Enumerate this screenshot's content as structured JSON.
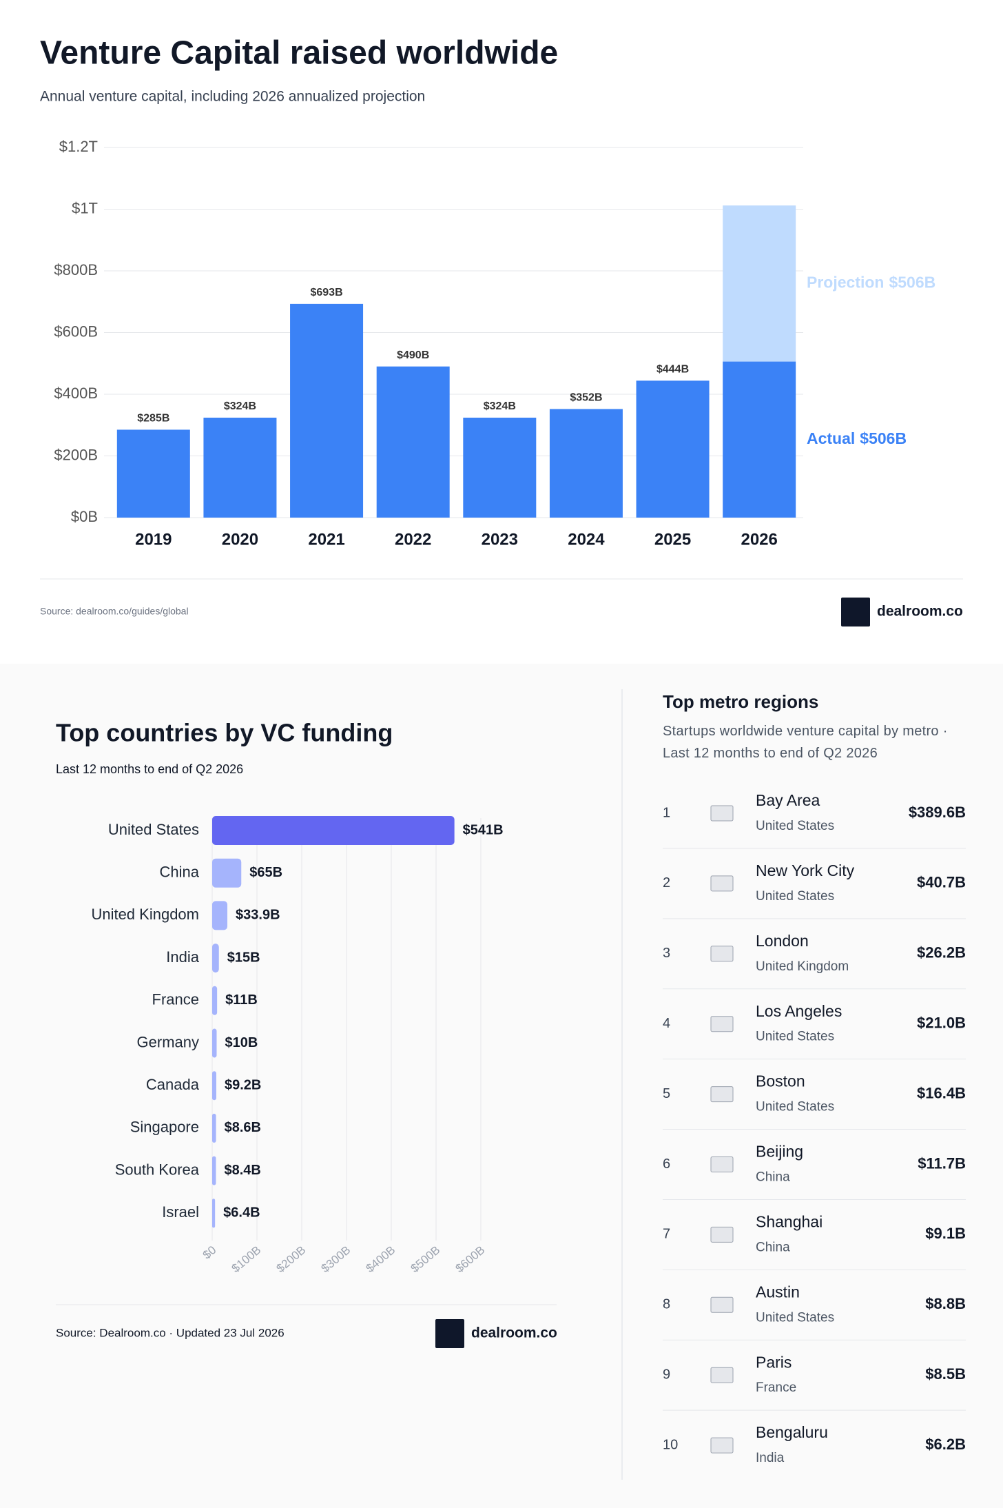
{
  "chart_data": [
    {
      "type": "stacked-bar",
      "title": "Venture Capital raised worldwide",
      "subtitle": "Annual venture capital, including 2026 annualized projection",
      "categories": [
        "2019",
        "2020",
        "2021",
        "2022",
        "2023",
        "2024",
        "2025",
        "2026"
      ],
      "series": [
        {
          "name": "Actual",
          "color": "#3b82f6",
          "values": [
            285,
            324,
            693,
            490,
            324,
            352,
            444,
            506
          ],
          "value_labels": [
            "$285B",
            "$324B",
            "$693B",
            "$490B",
            "$324B",
            "$352B",
            "$444B",
            "$506B"
          ]
        },
        {
          "name": "Projection",
          "color": "#bfdbfe",
          "values": [
            null,
            null,
            null,
            null,
            null,
            null,
            null,
            506
          ],
          "value_labels": [
            null,
            null,
            null,
            null,
            null,
            null,
            null,
            "$506B"
          ]
        }
      ],
      "ylim": [
        0,
        1200
      ],
      "yticks": [
        {
          "value": 0,
          "label": "$0B"
        },
        {
          "value": 200,
          "label": "$200B"
        },
        {
          "value": 400,
          "label": "$400B"
        },
        {
          "value": 600,
          "label": "$600B"
        },
        {
          "value": 800,
          "label": "$800B"
        },
        {
          "value": 1000,
          "label": "$1T"
        },
        {
          "value": 1200,
          "label": "$1.2T"
        }
      ],
      "grid": true,
      "source": "Source: dealroom.co/guides/global",
      "brand": "dealroom.co"
    },
    {
      "type": "barh",
      "title": "Top countries by VC funding",
      "subtitle": "Last 12 months to end of Q2 2026",
      "categories": [
        "United States",
        "China",
        "United Kingdom",
        "India",
        "France",
        "Germany",
        "Canada",
        "Singapore",
        "South Korea",
        "Israel"
      ],
      "values": [
        541,
        65,
        33.9,
        15,
        11,
        10,
        9.2,
        8.6,
        8.4,
        6.4
      ],
      "value_labels": [
        "$541B",
        "$65B",
        "$33.9B",
        "$15B",
        "$11B",
        "$10B",
        "$9.2B",
        "$8.6B",
        "$8.4B",
        "$6.4B"
      ],
      "colors": [
        "#6366f1",
        "#a5b4fc",
        "#a5b4fc",
        "#a5b4fc",
        "#a5b4fc",
        "#a5b4fc",
        "#a5b4fc",
        "#a5b4fc",
        "#a5b4fc",
        "#a5b4fc"
      ],
      "xlim": [
        0,
        600
      ],
      "xticks": [
        {
          "value": 0,
          "label": "$0"
        },
        {
          "value": 100,
          "label": "$100B"
        },
        {
          "value": 200,
          "label": "$200B"
        },
        {
          "value": 300,
          "label": "$300B"
        },
        {
          "value": 400,
          "label": "$400B"
        },
        {
          "value": 500,
          "label": "$500B"
        },
        {
          "value": 600,
          "label": "$600B"
        }
      ],
      "grid": true,
      "source": "Source: Dealroom.co · Updated 23 Jul 2026",
      "brand": "dealroom.co"
    }
  ],
  "metro_table": {
    "title": "Top metro regions",
    "subtitle": "Startups worldwide venture capital by metro · Last 12 months to end of Q2 2026",
    "rows": [
      {
        "rank": 1,
        "city": "Bay Area",
        "country": "United States",
        "value": "$389.6B"
      },
      {
        "rank": 2,
        "city": "New York City",
        "country": "United States",
        "value": "$40.7B"
      },
      {
        "rank": 3,
        "city": "London",
        "country": "United Kingdom",
        "value": "$26.2B"
      },
      {
        "rank": 4,
        "city": "Los Angeles",
        "country": "United States",
        "value": "$21.0B"
      },
      {
        "rank": 5,
        "city": "Boston",
        "country": "United States",
        "value": "$16.4B"
      },
      {
        "rank": 6,
        "city": "Beijing",
        "country": "China",
        "value": "$11.7B"
      },
      {
        "rank": 7,
        "city": "Shanghai",
        "country": "China",
        "value": "$9.1B"
      },
      {
        "rank": 8,
        "city": "Austin",
        "country": "United States",
        "value": "$8.8B"
      },
      {
        "rank": 9,
        "city": "Paris",
        "country": "France",
        "value": "$8.5B"
      },
      {
        "rank": 10,
        "city": "Bengaluru",
        "country": "India",
        "value": "$6.2B"
      }
    ]
  }
}
